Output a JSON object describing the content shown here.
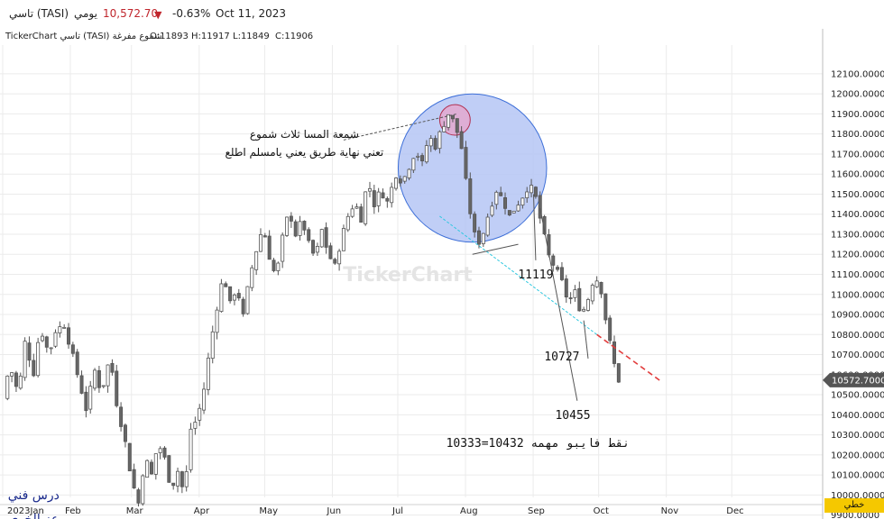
{
  "header": {
    "symbol": "تاسي (TASI)",
    "period": "يومي",
    "price": "10,572.70",
    "change": "-0.63%",
    "date": "Oct 11, 2023",
    "down_color": "#c0262d"
  },
  "infobar": {
    "source": "TickerChart تاسي (TASI) شموع مفرغة",
    "open": "O:11893",
    "high": "H:11917",
    "low": "L:11849",
    "close": "C:11906"
  },
  "watermark": "TickerChart",
  "line_type_button": "خطي",
  "chart_data": {
    "type": "candlestick",
    "x_ticks": [
      "2023Jan",
      "Feb",
      "Mar",
      "Apr",
      "May",
      "Jun",
      "Jul",
      "Aug",
      "Sep",
      "Oct",
      "Nov",
      "Dec"
    ],
    "y_ticks": [
      "12100.0000",
      "12000.0000",
      "11900.0000",
      "11800.0000",
      "11700.0000",
      "11600.0000",
      "11500.0000",
      "11400.0000",
      "11300.0000",
      "11200.0000",
      "11100.0000",
      "11000.0000",
      "10900.0000",
      "10800.0000",
      "10700.0000",
      "10600.0000",
      "10500.0000",
      "10400.0000",
      "10300.0000",
      "10200.0000",
      "10100.0000",
      "10000.0000",
      "9900.0000"
    ],
    "ylim": [
      9850,
      12160
    ],
    "last_price_label": "10572.7000",
    "last_price": 10572.7,
    "up_color": "#ffffff",
    "down_color": "#666666",
    "path": [
      [
        "2023-01-02",
        10480
      ],
      [
        "2023-01-05",
        10650
      ],
      [
        "2023-01-09",
        10500
      ],
      [
        "2023-01-12",
        10760
      ],
      [
        "2023-01-16",
        10610
      ],
      [
        "2023-01-19",
        10840
      ],
      [
        "2023-01-23",
        10700
      ],
      [
        "2023-01-26",
        10820
      ],
      [
        "2023-01-30",
        10850
      ],
      [
        "2023-02-02",
        10730
      ],
      [
        "2023-02-06",
        10560
      ],
      [
        "2023-02-09",
        10430
      ],
      [
        "2023-02-13",
        10620
      ],
      [
        "2023-02-16",
        10510
      ],
      [
        "2023-02-20",
        10690
      ],
      [
        "2023-02-23",
        10460
      ],
      [
        "2023-02-27",
        10260
      ],
      [
        "2023-03-02",
        10070
      ],
      [
        "2023-03-05",
        9960
      ],
      [
        "2023-03-08",
        10190
      ],
      [
        "2023-03-11",
        10100
      ],
      [
        "2023-03-14",
        10260
      ],
      [
        "2023-03-17",
        10180
      ],
      [
        "2023-03-20",
        10030
      ],
      [
        "2023-03-23",
        10120
      ],
      [
        "2023-03-26",
        10000
      ],
      [
        "2023-03-29",
        10330
      ],
      [
        "2023-04-01",
        10380
      ],
      [
        "2023-04-04",
        10530
      ],
      [
        "2023-04-07",
        10750
      ],
      [
        "2023-04-10",
        10940
      ],
      [
        "2023-04-13",
        11100
      ],
      [
        "2023-04-16",
        10950
      ],
      [
        "2023-04-19",
        11040
      ],
      [
        "2023-04-22",
        10890
      ],
      [
        "2023-04-25",
        11090
      ],
      [
        "2023-04-28",
        11220
      ],
      [
        "2023-05-01",
        11340
      ],
      [
        "2023-05-04",
        11190
      ],
      [
        "2023-05-07",
        11080
      ],
      [
        "2023-05-10",
        11280
      ],
      [
        "2023-05-13",
        11420
      ],
      [
        "2023-05-16",
        11300
      ],
      [
        "2023-05-19",
        11370
      ],
      [
        "2023-05-22",
        11250
      ],
      [
        "2023-05-25",
        11180
      ],
      [
        "2023-05-28",
        11320
      ],
      [
        "2023-05-31",
        11200
      ],
      [
        "2023-06-03",
        11140
      ],
      [
        "2023-06-06",
        11280
      ],
      [
        "2023-06-09",
        11390
      ],
      [
        "2023-06-12",
        11460
      ],
      [
        "2023-06-15",
        11380
      ],
      [
        "2023-06-18",
        11570
      ],
      [
        "2023-06-21",
        11450
      ],
      [
        "2023-06-24",
        11520
      ],
      [
        "2023-06-27",
        11460
      ],
      [
        "2023-07-01",
        11600
      ],
      [
        "2023-07-04",
        11560
      ],
      [
        "2023-07-07",
        11640
      ],
      [
        "2023-07-10",
        11720
      ],
      [
        "2023-07-13",
        11650
      ],
      [
        "2023-07-16",
        11790
      ],
      [
        "2023-07-19",
        11740
      ],
      [
        "2023-07-22",
        11830
      ],
      [
        "2023-07-25",
        11900
      ],
      [
        "2023-07-28",
        11850
      ],
      [
        "2023-07-31",
        11730
      ],
      [
        "2023-08-02",
        11560
      ],
      [
        "2023-08-04",
        11410
      ],
      [
        "2023-08-07",
        11240
      ],
      [
        "2023-08-10",
        11310
      ],
      [
        "2023-08-13",
        11430
      ],
      [
        "2023-08-16",
        11520
      ],
      [
        "2023-08-19",
        11470
      ],
      [
        "2023-08-22",
        11390
      ],
      [
        "2023-08-25",
        11440
      ],
      [
        "2023-08-28",
        11490
      ],
      [
        "2023-08-31",
        11550
      ],
      [
        "2023-09-03",
        11480
      ],
      [
        "2023-09-06",
        11330
      ],
      [
        "2023-09-09",
        11190
      ],
      [
        "2023-09-12",
        11130
      ],
      [
        "2023-09-15",
        11060
      ],
      [
        "2023-09-18",
        10960
      ],
      [
        "2023-09-21",
        11010
      ],
      [
        "2023-09-24",
        10900
      ],
      [
        "2023-09-27",
        10980
      ],
      [
        "2023-09-30",
        11100
      ],
      [
        "2023-10-03",
        11020
      ],
      [
        "2023-10-06",
        10810
      ],
      [
        "2023-10-09",
        10650
      ],
      [
        "2023-10-11",
        10573
      ]
    ],
    "circles": [
      {
        "center": [
          "2023-08-05",
          11630
        ],
        "edge": [
          "2023-09-08",
          11630
        ],
        "fill": "#b5c6f4",
        "stroke": "#3d6fd8"
      },
      {
        "center": [
          "2023-07-28",
          11870
        ],
        "edge": [
          "2023-08-04",
          11870
        ],
        "fill": "#e3a8cf",
        "stroke": "#b03050"
      }
    ],
    "lines": [
      {
        "from": [
          "2023-07-21",
          11390
        ],
        "to": [
          "2023-10-01",
          10800
        ],
        "color": "#2ec8e0",
        "dash": "3,2"
      },
      {
        "from": [
          "2023-10-01",
          10800
        ],
        "to": [
          "2023-10-30",
          10570
        ],
        "color": "#e23c3c",
        "dash": "6,4"
      },
      {
        "from": [
          "2023-08-05",
          11200
        ],
        "to": [
          "2023-08-26",
          11250
        ],
        "color": "#555555",
        "dash": ""
      },
      {
        "from": [
          "2023-06-07",
          11770
        ],
        "to": [
          "2023-07-29",
          11900
        ],
        "color": "#555555",
        "dash": "3,2"
      },
      {
        "from": [
          "2023-09-02",
          11500
        ],
        "to": [
          "2023-09-03",
          11170
        ],
        "color": "#555555",
        "dash": ""
      },
      {
        "from": [
          "2023-09-05",
          11430
        ],
        "to": [
          "2023-09-22",
          10470
        ],
        "color": "#555555",
        "dash": ""
      },
      {
        "from": [
          "2023-09-25",
          10870
        ],
        "to": [
          "2023-09-27",
          10680
        ],
        "color": "#555555",
        "dash": ""
      }
    ],
    "annotations": [
      {
        "text": "شمعة المسا ثلاث شموع",
        "at": [
          "2023-05-20",
          11780
        ],
        "size": 12,
        "font": "sans",
        "color": "#111111"
      },
      {
        "text": "تعني نهاية طريق يعني يامسلم اطلع",
        "at": [
          "2023-05-20",
          11690
        ],
        "size": 12,
        "font": "sans",
        "color": "#111111"
      },
      {
        "text": "11119",
        "at": [
          "2023-09-03",
          11080
        ],
        "size": 13,
        "font": "mono",
        "color": "#111111"
      },
      {
        "text": "10727",
        "at": [
          "2023-09-15",
          10670
        ],
        "size": 13,
        "font": "mono",
        "color": "#111111"
      },
      {
        "text": "10455",
        "at": [
          "2023-09-20",
          10380
        ],
        "size": 13,
        "font": "mono",
        "color": "#111111"
      },
      {
        "text": "10333=10432 نقط فايبو مهمه",
        "at": [
          "2023-09-04",
          10240
        ],
        "size": 13,
        "font": "mono",
        "color": "#111111"
      },
      {
        "text": "درس فني",
        "at": [
          "2023-01-16",
          9980
        ],
        "size": 14,
        "font": "serif",
        "color": "#1a2a8c"
      },
      {
        "text": "عز الخوي",
        "at": [
          "2023-01-16",
          9860
        ],
        "size": 14,
        "font": "serif",
        "color": "#1a2a8c"
      }
    ]
  }
}
